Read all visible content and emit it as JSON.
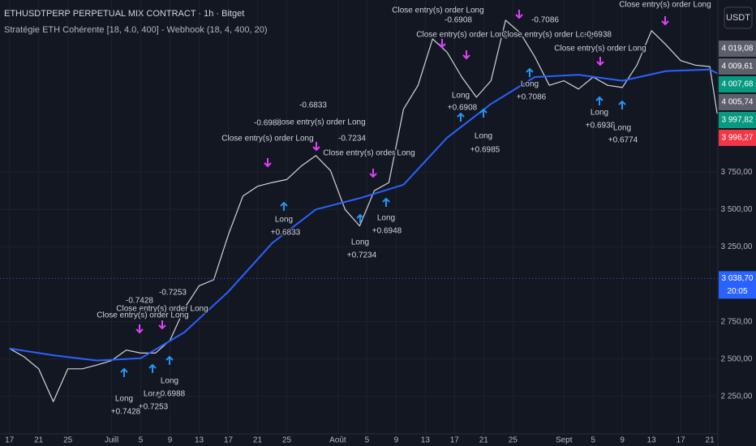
{
  "chart_data": {
    "type": "line",
    "title": "ETHUSDTPERP PERPETUAL MIX CONTRACT · 1h · Bitget",
    "subtitle": "Stratégie ETH Cohérente [18, 4.0, 400] - Webhook (18, 4, 400, 20)",
    "currency": "USDT",
    "xlim": [
      -1.3,
      97.1
    ],
    "ylim": [
      2000,
      4900
    ],
    "xticks": [
      {
        "value": 0,
        "label": "17"
      },
      {
        "value": 4,
        "label": "21"
      },
      {
        "value": 8,
        "label": "25"
      },
      {
        "value": 14,
        "label": "Juill"
      },
      {
        "value": 18,
        "label": "5"
      },
      {
        "value": 22,
        "label": "9"
      },
      {
        "value": 26,
        "label": "13"
      },
      {
        "value": 30,
        "label": "17"
      },
      {
        "value": 34,
        "label": "21"
      },
      {
        "value": 38,
        "label": "25"
      },
      {
        "value": 45,
        "label": "Août"
      },
      {
        "value": 49,
        "label": "5"
      },
      {
        "value": 53,
        "label": "9"
      },
      {
        "value": 57,
        "label": "13"
      },
      {
        "value": 61,
        "label": "17"
      },
      {
        "value": 65,
        "label": "21"
      },
      {
        "value": 69,
        "label": "25"
      },
      {
        "value": 76,
        "label": "Sept"
      },
      {
        "value": 80,
        "label": "5"
      },
      {
        "value": 84,
        "label": "9"
      },
      {
        "value": 88,
        "label": "13"
      },
      {
        "value": 92,
        "label": "17"
      },
      {
        "value": 96,
        "label": "21"
      }
    ],
    "yticks": [
      {
        "value": 2250,
        "label": "2 250,00"
      },
      {
        "value": 2500,
        "label": "2 500,00"
      },
      {
        "value": 2750,
        "label": "2 750,00"
      },
      {
        "value": 3250,
        "label": "3 250,00"
      },
      {
        "value": 3500,
        "label": "3 500,00"
      },
      {
        "value": 3750,
        "label": "3 750,00"
      }
    ],
    "grid": true,
    "series": [
      {
        "color": "#d1d4dc",
        "x": [
          0,
          2,
          4,
          6,
          8,
          10,
          12,
          14,
          16,
          18,
          20,
          22,
          24,
          26,
          28,
          30,
          32,
          34,
          36,
          38,
          40,
          42,
          44,
          46,
          48,
          50,
          52,
          54,
          56,
          58,
          60,
          62,
          64,
          66,
          68,
          70,
          72,
          74,
          76,
          78,
          80,
          82,
          84,
          86,
          88,
          90,
          92,
          94,
          96,
          97
        ],
        "values": [
          2570,
          2515,
          2435,
          2215,
          2435,
          2435,
          2460,
          2490,
          2560,
          2540,
          2540,
          2625,
          2840,
          2990,
          3030,
          3330,
          3590,
          3655,
          3680,
          3700,
          3790,
          3860,
          3760,
          3500,
          3390,
          3625,
          3680,
          4170,
          4330,
          4640,
          4550,
          4385,
          4250,
          4360,
          4765,
          4680,
          4520,
          4330,
          4360,
          4305,
          4385,
          4330,
          4315,
          4465,
          4695,
          4600,
          4495,
          4465,
          4455,
          4140
        ]
      },
      {
        "color": "#2962ff",
        "x": [
          0,
          6,
          12,
          18,
          24,
          30,
          36,
          42,
          48,
          54,
          60,
          66,
          72,
          78,
          84,
          90,
          96,
          97
        ],
        "values": [
          2570,
          2525,
          2490,
          2505,
          2680,
          2950,
          3275,
          3500,
          3575,
          3665,
          3980,
          4205,
          4385,
          4400,
          4360,
          4425,
          4435,
          4410
        ]
      }
    ],
    "last_price": {
      "value": 3038.7,
      "label": "3 038,70",
      "color": "#2962ff"
    },
    "countdown": "20:05",
    "price_labels": [
      {
        "label": "4 019,08",
        "color": "#5d606b"
      },
      {
        "label": "4 009,61",
        "color": "#5d606b"
      },
      {
        "label": "4 007,68",
        "color": "#089981"
      },
      {
        "label": "4 005,74",
        "color": "#5d606b"
      },
      {
        "label": "3 997,82",
        "color": "#089981"
      },
      {
        "label": "3 996,27",
        "color": "#f23645"
      }
    ],
    "annotations": [
      "Close entry(s) order Long",
      "-0.6908",
      "Close entry(s) order Long",
      "-0.7086",
      "Close entry(s) order Long",
      "-0.6938",
      "Close entry(s) order Long",
      "Close entry(s) order Long",
      "Long",
      "+0.7086",
      "Long",
      "+0.6908",
      "Long",
      "+0.6985",
      "Long",
      "+0.6938",
      "Long",
      "+0.6774",
      "-0.6833",
      "Close entry(s) order Long",
      "-0.6988",
      "Close entry(s) order Long",
      "-0.7234",
      "Close entry(s) order Long",
      "Long",
      "+0.6833",
      "Long",
      "+0.6948",
      "Long",
      "+0.7234",
      "-0.7428",
      "-0.7253",
      "Close entry(s) order Long",
      "Close entry(s) order Long",
      "Long",
      "+0.7428",
      "Long",
      "+0.7253",
      "Long",
      "+0.6988"
    ]
  }
}
